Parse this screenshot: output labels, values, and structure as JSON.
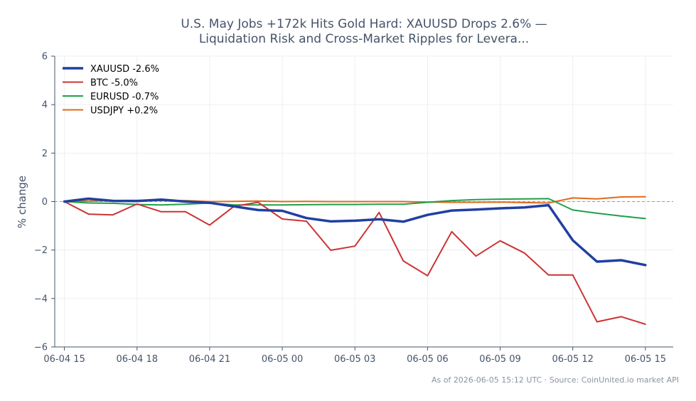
{
  "chart_data": {
    "type": "line",
    "title_line1": "U.S. May Jobs +172k Hits Gold Hard: XAUUSD Drops 2.6% —",
    "title_line2": "Liquidation Risk and Cross-Market Ripples for Levera...",
    "xlabel": "",
    "ylabel": "% change",
    "ylim": [
      -6,
      6
    ],
    "yticks": [
      -6,
      -4,
      -2,
      0,
      2,
      4,
      6
    ],
    "ytick_labels": [
      "−6",
      "−4",
      "−2",
      "0",
      "2",
      "4",
      "6"
    ],
    "xlim": [
      -0.4,
      25.15
    ],
    "xtick_positions": [
      0,
      3,
      6,
      9,
      12,
      15,
      18,
      21,
      24
    ],
    "xtick_labels": [
      "06-04 15",
      "06-04 18",
      "06-04 21",
      "06-05 00",
      "06-05 03",
      "06-05 06",
      "06-05 09",
      "06-05 12",
      "06-05 15"
    ],
    "x": [
      0,
      1,
      2,
      3,
      4,
      5,
      6,
      7,
      8,
      9,
      10,
      11,
      12,
      13,
      14,
      15,
      16,
      17,
      18,
      19,
      20,
      21,
      22,
      23,
      24
    ],
    "grid": true,
    "baseline": 0,
    "legend_position": "top-left",
    "series": [
      {
        "name": "XAUUSD -2.6%",
        "color": "#2040a0",
        "width": 3.5,
        "values": [
          0.0,
          0.12,
          0.03,
          0.02,
          0.08,
          0.0,
          -0.05,
          -0.2,
          -0.35,
          -0.38,
          -0.68,
          -0.82,
          -0.79,
          -0.73,
          -0.83,
          -0.55,
          -0.37,
          -0.33,
          -0.28,
          -0.24,
          -0.15,
          -1.6,
          -2.48,
          -2.42,
          -2.62
        ]
      },
      {
        "name": "BTC -5.0%",
        "color": "#cc3333",
        "width": 2,
        "values": [
          0.0,
          -0.52,
          -0.55,
          -0.1,
          -0.42,
          -0.42,
          -0.97,
          -0.2,
          -0.03,
          -0.72,
          -0.81,
          -2.01,
          -1.84,
          -0.45,
          -2.45,
          -3.06,
          -1.24,
          -2.25,
          -1.62,
          -2.12,
          -3.03,
          -3.03,
          -4.96,
          -4.75,
          -5.06
        ]
      },
      {
        "name": "EURUSD -0.7%",
        "color": "#22a04a",
        "width": 2,
        "values": [
          0.0,
          -0.06,
          -0.07,
          -0.12,
          -0.14,
          -0.11,
          -0.06,
          -0.14,
          -0.14,
          -0.14,
          -0.13,
          -0.12,
          -0.12,
          -0.11,
          -0.11,
          -0.03,
          0.04,
          0.08,
          0.1,
          0.11,
          0.12,
          -0.35,
          -0.48,
          -0.6,
          -0.7
        ]
      },
      {
        "name": "USDJPY +0.2%",
        "color": "#e06a1c",
        "width": 2,
        "values": [
          0.0,
          0.02,
          0.04,
          0.05,
          0.04,
          0.04,
          0.0,
          0.01,
          0.02,
          0.0,
          0.01,
          0.0,
          0.0,
          0.0,
          0.0,
          -0.02,
          -0.03,
          -0.03,
          -0.02,
          -0.04,
          -0.06,
          0.15,
          0.11,
          0.19,
          0.2
        ]
      }
    ],
    "footer": "As of 2026-06-05 15:12 UTC · Source: CoinUnited.io market API"
  }
}
